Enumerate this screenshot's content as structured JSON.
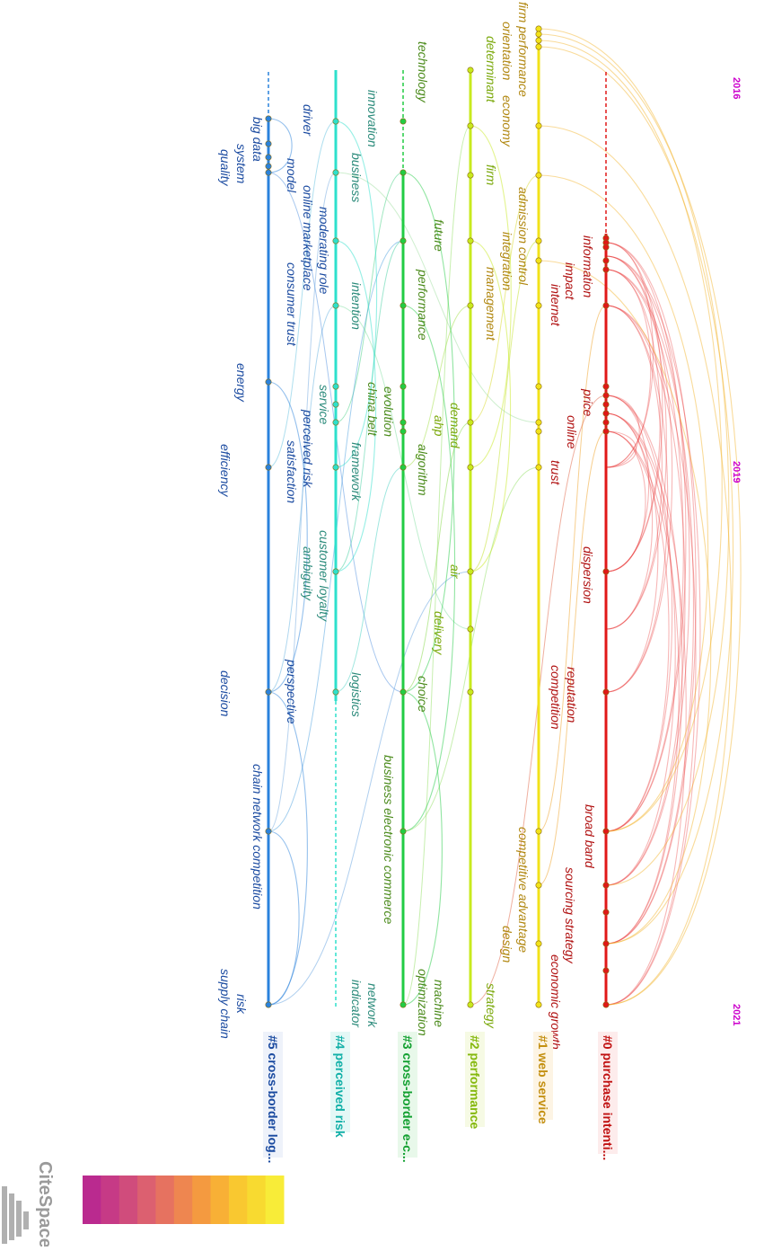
{
  "years": [
    "2016",
    "2019",
    "2021"
  ],
  "clusters": [
    {
      "id": "#0",
      "label": "#0 purchase intenti...",
      "color": "#e01818",
      "textColor": "#b01010",
      "keywords": [
        "information",
        "impact",
        "internet",
        "price",
        "online",
        "trust",
        "dispersion",
        "reputation",
        "competition",
        "broad band",
        "sourcing strategy",
        "economic growth"
      ]
    },
    {
      "id": "#1",
      "label": "#1 web service",
      "color": "#f2e21a",
      "textColor": "#c49012",
      "keywords": [
        "firm performance",
        "orientation",
        "economy",
        "admission control",
        "integration",
        "management",
        "competitive advantage",
        "design"
      ]
    },
    {
      "id": "#2",
      "label": "#2 performance",
      "color": "#c8ea1e",
      "textColor": "#84b80c",
      "keywords": [
        "determinant",
        "firm",
        "demand",
        "ahp",
        "air",
        "delivery",
        "strategy"
      ]
    },
    {
      "id": "#3",
      "label": "#3 cross-border e-c...",
      "color": "#22cc44",
      "textColor": "#12a030",
      "keywords": [
        "technology",
        "future",
        "performance",
        "algorithm",
        "evolution",
        "china belt",
        "choice",
        "business electronic commerce",
        "machine",
        "optimization"
      ]
    },
    {
      "id": "#4",
      "label": "#4 perceived risk",
      "color": "#2ee0cc",
      "textColor": "#12b0a8",
      "keywords": [
        "innovation",
        "business",
        "intention",
        "service",
        "framework",
        "customer loyalty",
        "ambiguity",
        "logistics",
        "network",
        "indicator"
      ]
    },
    {
      "id": "#5",
      "label": "#5 cross-border log...",
      "color": "#2a82dc",
      "textColor": "#1a4aa0",
      "keywords": [
        "driver",
        "big data",
        "model",
        "system",
        "quality",
        "online marketplace",
        "moderating role",
        "consumer trust",
        "energy",
        "perceived risk",
        "satisfaction",
        "efficiency",
        "perspective",
        "decision",
        "chain network competition",
        "risk",
        "supply chain"
      ]
    }
  ],
  "legend_colors": [
    "#ba2a8f",
    "#c63a86",
    "#d04c7c",
    "#dc6070",
    "#e67260",
    "#ee8650",
    "#f49a40",
    "#f8b036",
    "#f9c830",
    "#f8da30",
    "#f8ec38"
  ],
  "logo": {
    "text": "CiteSpace"
  }
}
